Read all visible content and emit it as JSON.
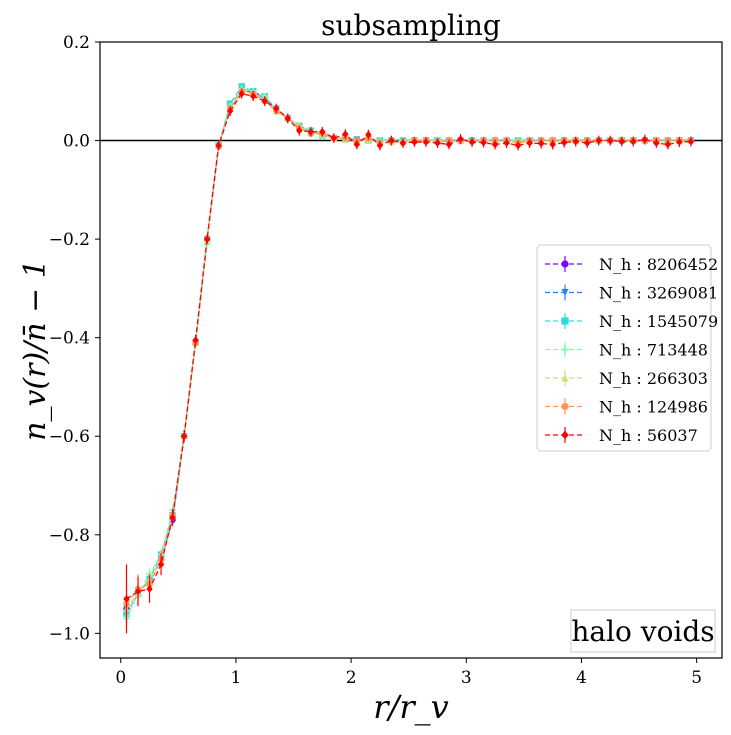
{
  "chart_data": {
    "type": "line",
    "title": "subsampling",
    "xlabel": "r/r_v",
    "ylabel": "n_v(r)/n̄ − 1",
    "xlim": [
      -0.18,
      5.22
    ],
    "ylim": [
      -1.05,
      0.2
    ],
    "xticks": [
      0,
      1,
      2,
      3,
      4,
      5
    ],
    "xtick_labels": [
      "0",
      "1",
      "2",
      "3",
      "4",
      "5"
    ],
    "yticks": [
      -1.0,
      -0.8,
      -0.6,
      -0.4,
      -0.2,
      0.0,
      0.2
    ],
    "ytick_labels": [
      "−1.0",
      "−0.8",
      "−0.6",
      "−0.4",
      "−0.2",
      "0.0",
      "0.2"
    ],
    "hline": 0.0,
    "legend_position": "center-right",
    "annotation": "halo voids",
    "x": [
      0.05,
      0.15,
      0.25,
      0.35,
      0.45,
      0.55,
      0.65,
      0.75,
      0.85,
      0.95,
      1.05,
      1.15,
      1.25,
      1.35,
      1.45,
      1.55,
      1.65,
      1.75,
      1.85,
      1.95,
      2.05,
      2.15,
      2.25,
      2.35,
      2.45,
      2.55,
      2.65,
      2.75,
      2.85,
      2.95,
      3.05,
      3.15,
      3.25,
      3.35,
      3.45,
      3.55,
      3.65,
      3.75,
      3.85,
      3.95,
      4.05,
      4.15,
      4.25,
      4.35,
      4.45,
      4.55,
      4.65,
      4.75,
      4.85,
      4.95
    ],
    "series": [
      {
        "name": "8206452",
        "label_prefix": "N_h : ",
        "color": "#8000ff",
        "marker": "circle",
        "values": [
          -0.95,
          -0.92,
          -0.89,
          -0.85,
          -0.77,
          -0.6,
          -0.41,
          -0.2,
          -0.01,
          0.07,
          0.1,
          0.1,
          0.085,
          0.065,
          0.045,
          0.03,
          0.018,
          0.01,
          0.005,
          0.003,
          0.002,
          0.001,
          0.0,
          0.0,
          0.0,
          0.0,
          0.0,
          0.0,
          0.0,
          0.0,
          0.0,
          0.0,
          0.0,
          0.0,
          0.0,
          0.0,
          0.0,
          0.0,
          0.0,
          0.0,
          0.0,
          0.0,
          0.0,
          0.0,
          0.0,
          0.0,
          0.0,
          0.0,
          0.0,
          0.0
        ],
        "errors": [
          0.01,
          0.008,
          0.006,
          0.005,
          0.004,
          0.003,
          0.003,
          0.002,
          0.002,
          0.002,
          0.002,
          0.002,
          0.002,
          0.002,
          0.002,
          0.002,
          0.002,
          0.002,
          0.002,
          0.002,
          0.002,
          0.002,
          0.002,
          0.002,
          0.002,
          0.002,
          0.002,
          0.002,
          0.002,
          0.002,
          0.002,
          0.002,
          0.002,
          0.002,
          0.002,
          0.002,
          0.002,
          0.002,
          0.002,
          0.002,
          0.002,
          0.002,
          0.002,
          0.002,
          0.002,
          0.002,
          0.002,
          0.002,
          0.002,
          0.002
        ]
      },
      {
        "name": "3269081",
        "label_prefix": "N_h : ",
        "color": "#2c7ef7",
        "marker": "triangle-down",
        "values": [
          -0.95,
          -0.92,
          -0.89,
          -0.85,
          -0.77,
          -0.6,
          -0.41,
          -0.2,
          -0.01,
          0.07,
          0.105,
          0.1,
          0.085,
          0.065,
          0.045,
          0.03,
          0.018,
          0.01,
          0.005,
          0.003,
          0.002,
          0.001,
          0.0,
          0.0,
          0.0,
          0.0,
          0.0,
          0.0,
          0.0,
          0.0,
          0.0,
          0.0,
          0.0,
          0.0,
          0.0,
          0.0,
          0.0,
          0.0,
          0.0,
          0.0,
          0.0,
          0.0,
          0.0,
          0.0,
          0.0,
          0.0,
          0.0,
          0.0,
          0.0,
          0.0
        ],
        "errors": [
          0.012,
          0.009,
          0.007,
          0.006,
          0.005,
          0.004,
          0.003,
          0.003,
          0.002,
          0.002,
          0.002,
          0.002,
          0.002,
          0.002,
          0.002,
          0.002,
          0.002,
          0.002,
          0.002,
          0.002,
          0.002,
          0.002,
          0.002,
          0.002,
          0.002,
          0.002,
          0.002,
          0.002,
          0.002,
          0.002,
          0.002,
          0.002,
          0.002,
          0.002,
          0.002,
          0.002,
          0.002,
          0.002,
          0.002,
          0.002,
          0.002,
          0.002,
          0.002,
          0.002,
          0.002,
          0.002,
          0.002,
          0.002,
          0.002,
          0.002
        ]
      },
      {
        "name": "1545079",
        "label_prefix": "N_h : ",
        "color": "#2adddd",
        "marker": "square",
        "values": [
          -0.96,
          -0.92,
          -0.89,
          -0.84,
          -0.76,
          -0.6,
          -0.41,
          -0.2,
          -0.01,
          0.075,
          0.11,
          0.1,
          0.09,
          0.065,
          0.045,
          0.03,
          0.02,
          0.01,
          0.005,
          0.003,
          0.0,
          0.0,
          0.0,
          0.0,
          0.0,
          0.0,
          0.0,
          0.0,
          0.0,
          0.0,
          0.0,
          0.0,
          0.0,
          0.0,
          0.0,
          0.0,
          0.0,
          0.0,
          0.0,
          0.0,
          0.0,
          0.0,
          0.0,
          0.0,
          0.0,
          0.0,
          0.0,
          0.0,
          0.0,
          0.0
        ],
        "errors": [
          0.015,
          0.011,
          0.009,
          0.007,
          0.006,
          0.005,
          0.004,
          0.003,
          0.003,
          0.003,
          0.003,
          0.003,
          0.003,
          0.003,
          0.003,
          0.003,
          0.003,
          0.003,
          0.003,
          0.003,
          0.003,
          0.003,
          0.003,
          0.003,
          0.003,
          0.003,
          0.003,
          0.003,
          0.003,
          0.003,
          0.003,
          0.003,
          0.003,
          0.003,
          0.003,
          0.003,
          0.003,
          0.003,
          0.003,
          0.003,
          0.003,
          0.003,
          0.003,
          0.003,
          0.003,
          0.003,
          0.003,
          0.003,
          0.003,
          0.003
        ]
      },
      {
        "name": "713448",
        "label_prefix": "N_h : ",
        "color": "#80ffb4",
        "marker": "plus",
        "values": [
          -0.97,
          -0.92,
          -0.88,
          -0.84,
          -0.75,
          -0.6,
          -0.41,
          -0.21,
          -0.01,
          0.07,
          0.105,
          0.1,
          0.09,
          0.065,
          0.045,
          0.03,
          0.02,
          0.01,
          0.006,
          0.003,
          0.0,
          0.0,
          0.0,
          0.0,
          0.0,
          0.0,
          0.0,
          0.0,
          0.0,
          0.0,
          0.0,
          0.0,
          0.0,
          0.0,
          0.0,
          0.0,
          0.0,
          0.0,
          0.0,
          0.0,
          0.0,
          0.0,
          0.0,
          0.0,
          0.0,
          0.0,
          0.0,
          0.0,
          0.0,
          0.0
        ],
        "errors": [
          0.02,
          0.015,
          0.012,
          0.01,
          0.008,
          0.006,
          0.005,
          0.004,
          0.004,
          0.004,
          0.004,
          0.004,
          0.004,
          0.004,
          0.004,
          0.004,
          0.004,
          0.004,
          0.004,
          0.004,
          0.004,
          0.004,
          0.004,
          0.004,
          0.004,
          0.004,
          0.004,
          0.004,
          0.004,
          0.004,
          0.004,
          0.004,
          0.004,
          0.004,
          0.004,
          0.004,
          0.004,
          0.004,
          0.004,
          0.004,
          0.004,
          0.004,
          0.004,
          0.004,
          0.004,
          0.004,
          0.004,
          0.004,
          0.004,
          0.004
        ]
      },
      {
        "name": "266303",
        "label_prefix": "N_h : ",
        "color": "#d4dd80",
        "marker": "triangle-up",
        "values": [
          -0.95,
          -0.92,
          -0.89,
          -0.85,
          -0.76,
          -0.6,
          -0.41,
          -0.2,
          -0.01,
          0.065,
          0.1,
          0.095,
          0.085,
          0.06,
          0.045,
          0.03,
          0.015,
          0.012,
          0.004,
          0.002,
          0.0,
          0.0,
          0.0,
          -0.003,
          0.0,
          0.0,
          0.0,
          0.0,
          0.0,
          0.0,
          0.0,
          0.0,
          0.0,
          0.0,
          0.0,
          0.0,
          0.0,
          0.0,
          0.0,
          0.0,
          0.0,
          0.0,
          0.0,
          0.0,
          0.0,
          0.0,
          0.0,
          0.0,
          0.0,
          0.0
        ],
        "errors": [
          0.03,
          0.02,
          0.016,
          0.013,
          0.01,
          0.008,
          0.007,
          0.006,
          0.006,
          0.006,
          0.006,
          0.006,
          0.006,
          0.006,
          0.006,
          0.006,
          0.006,
          0.006,
          0.006,
          0.006,
          0.006,
          0.006,
          0.006,
          0.006,
          0.006,
          0.006,
          0.006,
          0.006,
          0.006,
          0.006,
          0.006,
          0.006,
          0.006,
          0.006,
          0.006,
          0.006,
          0.006,
          0.006,
          0.006,
          0.006,
          0.006,
          0.006,
          0.006,
          0.006,
          0.006,
          0.006,
          0.006,
          0.006,
          0.006,
          0.006
        ]
      },
      {
        "name": "124986",
        "label_prefix": "N_h : ",
        "color": "#ff9456",
        "marker": "circle",
        "values": [
          -0.94,
          -0.91,
          -0.9,
          -0.85,
          -0.76,
          -0.6,
          -0.41,
          -0.2,
          -0.012,
          0.065,
          0.1,
          0.095,
          0.08,
          0.06,
          0.045,
          0.025,
          0.015,
          0.015,
          0.005,
          0.005,
          0.0,
          0.005,
          -0.005,
          0.0,
          -0.005,
          0.0,
          0.0,
          -0.003,
          0.0,
          0.0,
          -0.002,
          0.0,
          0.0,
          0.0,
          -0.005,
          0.0,
          0.0,
          0.0,
          0.0,
          0.0,
          0.0,
          0.0,
          0.0,
          0.0,
          0.0,
          0.0,
          0.0,
          0.0,
          0.0,
          0.0
        ],
        "errors": [
          0.04,
          0.03,
          0.022,
          0.018,
          0.014,
          0.011,
          0.009,
          0.008,
          0.008,
          0.008,
          0.008,
          0.008,
          0.008,
          0.008,
          0.008,
          0.008,
          0.008,
          0.008,
          0.008,
          0.008,
          0.008,
          0.008,
          0.008,
          0.008,
          0.008,
          0.008,
          0.008,
          0.008,
          0.008,
          0.008,
          0.008,
          0.008,
          0.008,
          0.008,
          0.008,
          0.008,
          0.008,
          0.008,
          0.008,
          0.008,
          0.008,
          0.008,
          0.008,
          0.008,
          0.008,
          0.008,
          0.008,
          0.008,
          0.008,
          0.008
        ]
      },
      {
        "name": "56037",
        "label_prefix": "N_h : ",
        "color": "#ff0000",
        "marker": "diamond",
        "values": [
          -0.93,
          -0.915,
          -0.91,
          -0.86,
          -0.765,
          -0.6,
          -0.405,
          -0.2,
          -0.01,
          0.06,
          0.095,
          0.09,
          0.08,
          0.065,
          0.045,
          0.02,
          0.018,
          0.018,
          0.005,
          0.013,
          -0.008,
          0.012,
          -0.01,
          0.0,
          -0.005,
          -0.003,
          -0.003,
          -0.005,
          -0.008,
          0.003,
          -0.003,
          -0.004,
          -0.008,
          -0.005,
          -0.01,
          -0.005,
          -0.006,
          -0.008,
          -0.004,
          -0.002,
          -0.005,
          0.0,
          0.0,
          -0.002,
          -0.002,
          0.002,
          -0.005,
          -0.008,
          -0.003,
          -0.002
        ],
        "errors": [
          0.07,
          0.03,
          0.028,
          0.022,
          0.017,
          0.013,
          0.011,
          0.01,
          0.01,
          0.01,
          0.01,
          0.01,
          0.01,
          0.01,
          0.01,
          0.01,
          0.01,
          0.01,
          0.01,
          0.01,
          0.01,
          0.01,
          0.01,
          0.01,
          0.01,
          0.01,
          0.01,
          0.01,
          0.01,
          0.01,
          0.01,
          0.01,
          0.01,
          0.01,
          0.01,
          0.01,
          0.01,
          0.01,
          0.01,
          0.01,
          0.01,
          0.01,
          0.01,
          0.01,
          0.01,
          0.01,
          0.01,
          0.01,
          0.01,
          0.01
        ]
      }
    ]
  }
}
